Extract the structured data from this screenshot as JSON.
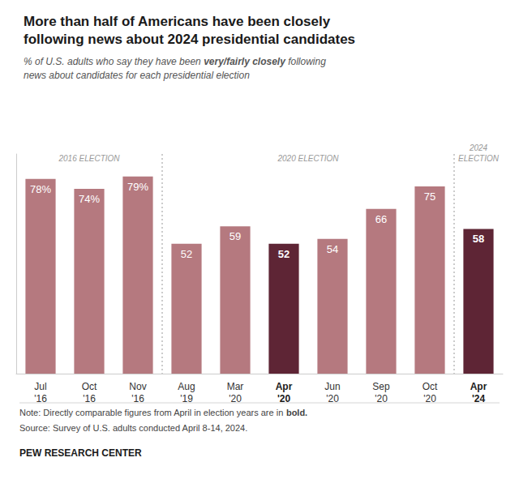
{
  "chart_data": {
    "type": "bar",
    "title": "More than half of Americans have been closely\nfollowing news about 2024 presidential candidates",
    "subtitle": "% of U.S. adults who say they have been very/fairly closely following\nnews about candidates for each presidential election",
    "subtitle_bold": "very/fairly closely",
    "categories": [
      "Jul\n'16",
      "Oct\n'16",
      "Nov\n'16",
      "Aug\n'19",
      "Mar\n'20",
      "Apr\n'20",
      "Jun\n'20",
      "Sep\n'20",
      "Oct\n'20",
      "Apr\n'24"
    ],
    "values": [
      78,
      74,
      79,
      52,
      59,
      52,
      54,
      66,
      75,
      58
    ],
    "value_labels": [
      "78%",
      "74%",
      "79%",
      "52",
      "59",
      "52",
      "54",
      "66",
      "75",
      "58"
    ],
    "colors": [
      "#b5797f",
      "#b5797f",
      "#b5797f",
      "#b5797f",
      "#b5797f",
      "#5e2535",
      "#b5797f",
      "#b5797f",
      "#b5797f",
      "#5e2535"
    ],
    "data_labels": true,
    "ylim": [
      0,
      88
    ],
    "tick_labels": "x",
    "grid": false,
    "annotations": [
      {
        "text": "2016 ELECTION",
        "first": "Jul\n'16",
        "last": "Nov\n'16"
      },
      {
        "text": "2020 ELECTION",
        "first": "Aug\n'19",
        "last": "Oct\n'20"
      },
      {
        "text": "2024\nELECTION",
        "first": "Apr\n'24",
        "last": "Apr\n'24"
      }
    ],
    "note": "Note: Directly comparable figures from April in election years are in bold.",
    "note_bold": "bold.",
    "source": "Source: Survey of U.S. adults conducted April 8-14, 2024.",
    "credit": "PEW RESEARCH CENTER"
  }
}
